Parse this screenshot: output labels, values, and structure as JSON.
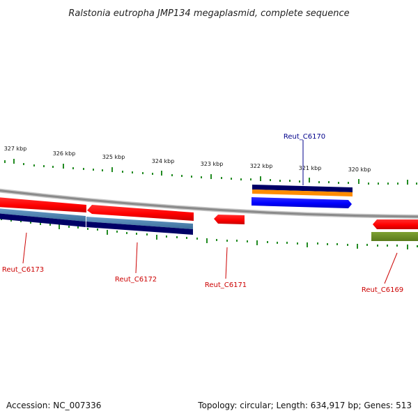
{
  "title": "Ralstonia eutropha JMP134 megaplasmid, complete sequence",
  "footer": {
    "accession": "Accession: NC_007336",
    "summary": "Topology: circular; Length: 634,917 bp; Genes: 513"
  },
  "scale_labels": [
    "327 kbp",
    "326 kbp",
    "325 kbp",
    "324 kbp",
    "323 kbp",
    "322 kbp",
    "321 kbp",
    "320 kbp"
  ],
  "gene_labels": [
    {
      "name": "Reut_C6170",
      "color": "#00008b"
    },
    {
      "name": "Reut_C6173",
      "color": "#cc0000"
    },
    {
      "name": "Reut_C6172",
      "color": "#cc0000"
    },
    {
      "name": "Reut_C6171",
      "color": "#cc0000"
    },
    {
      "name": "Reut_C6169",
      "color": "#cc0000"
    }
  ],
  "colors": {
    "backbone": "#8a8a8a",
    "tick": "#228b22",
    "gene_red": "#ff0000",
    "gene_blue": "#0000ff",
    "navy": "#000066",
    "steel": "#4682b4",
    "orange": "#ff8c00",
    "olive": "#6b8e23"
  }
}
